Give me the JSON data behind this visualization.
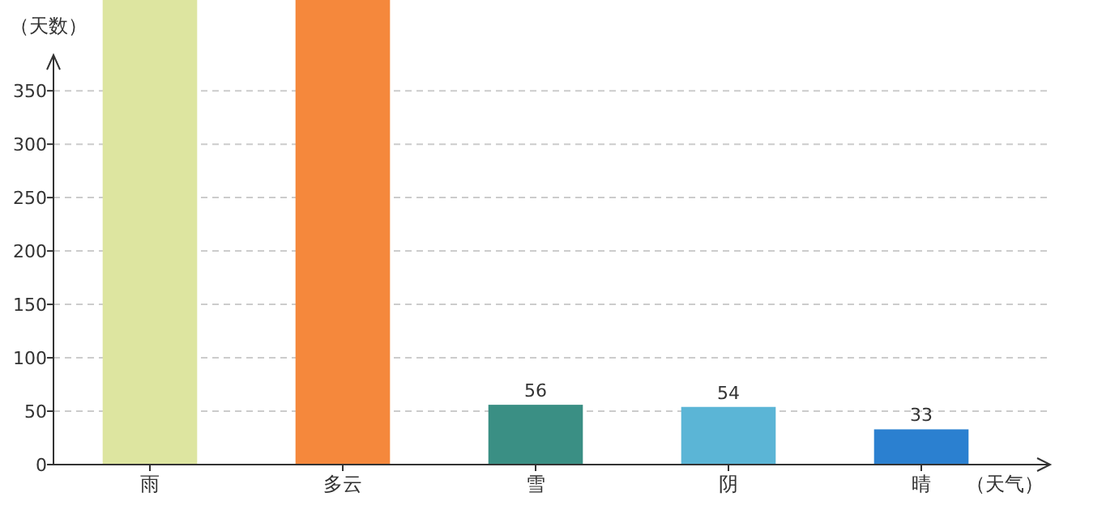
{
  "chart_data": {
    "type": "bar",
    "ylabel": "（天数）",
    "xlabel": "（天气）",
    "categories": [
      "雨",
      "多云",
      "雪",
      "阴",
      "晴"
    ],
    "values": [
      435,
      435,
      56,
      54,
      33
    ],
    "colors": [
      "#dde5a0",
      "#f5883c",
      "#3a8f84",
      "#5bb5d6",
      "#2b80d0"
    ],
    "value_labels": [
      null,
      null,
      "56",
      "54",
      "33"
    ],
    "ylim": [
      0,
      435
    ],
    "yticks": [
      0,
      50,
      100,
      150,
      200,
      250,
      300,
      350
    ],
    "grid": "y"
  }
}
